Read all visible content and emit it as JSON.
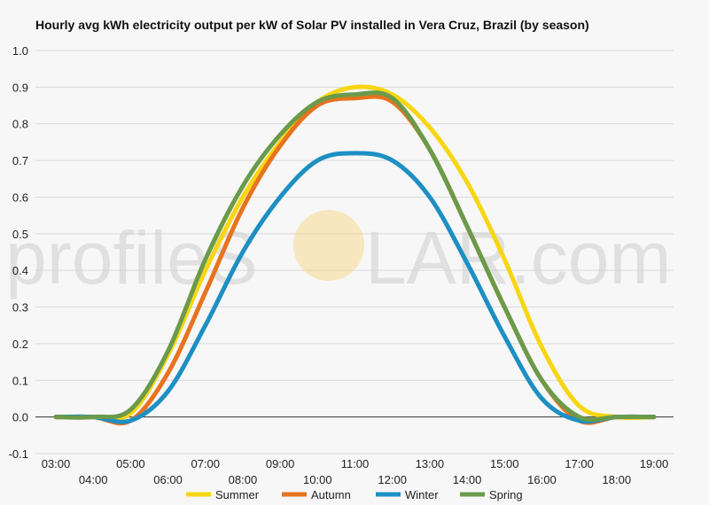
{
  "chart_data": {
    "type": "line",
    "title": "Hourly avg kWh electricity output per kW of Solar PV installed in Vera Cruz, Brazil (by season)",
    "xlabel": "",
    "ylabel": "",
    "categories": [
      "03:00",
      "04:00",
      "05:00",
      "06:00",
      "07:00",
      "08:00",
      "09:00",
      "10:00",
      "11:00",
      "12:00",
      "13:00",
      "14:00",
      "15:00",
      "16:00",
      "17:00",
      "18:00",
      "19:00"
    ],
    "ylim": [
      -0.1,
      1.0
    ],
    "yticks": [
      "-0.1",
      "0.0",
      "0.1",
      "0.2",
      "0.3",
      "0.4",
      "0.5",
      "0.6",
      "0.7",
      "0.8",
      "0.9",
      "1.0"
    ],
    "grid": true,
    "legend_position": "bottom",
    "series": [
      {
        "name": "Summer",
        "color": "#f7d612",
        "values": [
          0.0,
          0.0,
          0.01,
          0.17,
          0.4,
          0.6,
          0.75,
          0.86,
          0.9,
          0.88,
          0.79,
          0.64,
          0.43,
          0.19,
          0.03,
          0.0,
          0.0
        ]
      },
      {
        "name": "Autumn",
        "color": "#e8731f",
        "values": [
          0.0,
          0.0,
          -0.01,
          0.12,
          0.34,
          0.57,
          0.74,
          0.85,
          0.87,
          0.86,
          0.73,
          0.52,
          0.3,
          0.1,
          -0.01,
          0.0,
          0.0
        ]
      },
      {
        "name": "Winter",
        "color": "#1d8fc3",
        "values": [
          0.0,
          0.0,
          -0.01,
          0.07,
          0.25,
          0.45,
          0.6,
          0.7,
          0.72,
          0.7,
          0.6,
          0.42,
          0.22,
          0.05,
          -0.01,
          0.0,
          0.0
        ]
      },
      {
        "name": "Spring",
        "color": "#6b9a4a",
        "values": [
          0.0,
          0.0,
          0.02,
          0.18,
          0.43,
          0.63,
          0.77,
          0.86,
          0.88,
          0.87,
          0.73,
          0.52,
          0.3,
          0.1,
          0.0,
          0.0,
          0.0
        ]
      }
    ]
  },
  "watermark": {
    "text_left": "profileS",
    "text_right": "LAR.com",
    "sun_color": "#f5d27a"
  }
}
